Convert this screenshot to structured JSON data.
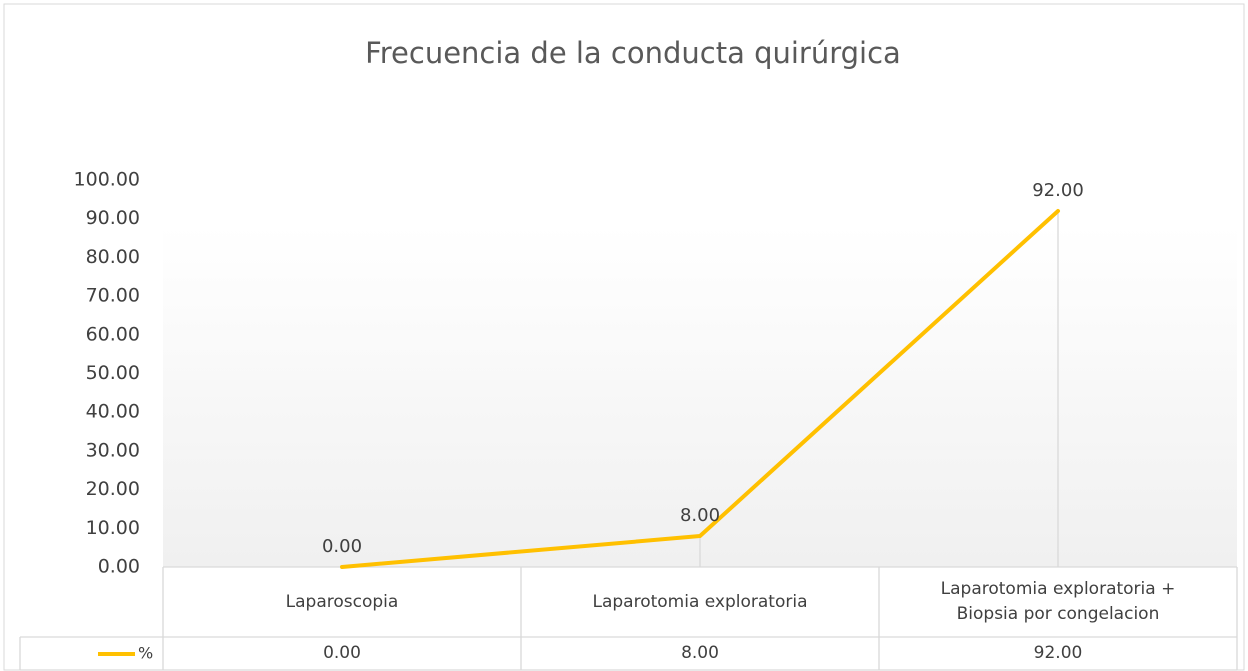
{
  "chart_data": {
    "type": "line",
    "title": "Frecuencia de la conducta quirúrgica",
    "categories": [
      "Laparoscopia",
      "Laparotomia exploratoria",
      "Laparotomia exploratoria + Biopsia por congelacion"
    ],
    "series": [
      {
        "name": "%",
        "color": "#ffc000",
        "values": [
          0,
          8,
          92
        ],
        "value_labels": [
          "0.00",
          "8.00",
          "92.00"
        ]
      }
    ],
    "ylim": [
      0,
      100
    ],
    "yticks": [
      {
        "value": 0,
        "label": "0.00"
      },
      {
        "value": 10,
        "label": "10.00"
      },
      {
        "value": 20,
        "label": "20.00"
      },
      {
        "value": 30,
        "label": "30.00"
      },
      {
        "value": 40,
        "label": "40.00"
      },
      {
        "value": 50,
        "label": "50.00"
      },
      {
        "value": 60,
        "label": "60.00"
      },
      {
        "value": 70,
        "label": "70.00"
      },
      {
        "value": 80,
        "label": "80.00"
      },
      {
        "value": 90,
        "label": "90.00"
      },
      {
        "value": 100,
        "label": "100.00"
      }
    ],
    "grid": false,
    "drop_lines": true,
    "data_table": true
  }
}
